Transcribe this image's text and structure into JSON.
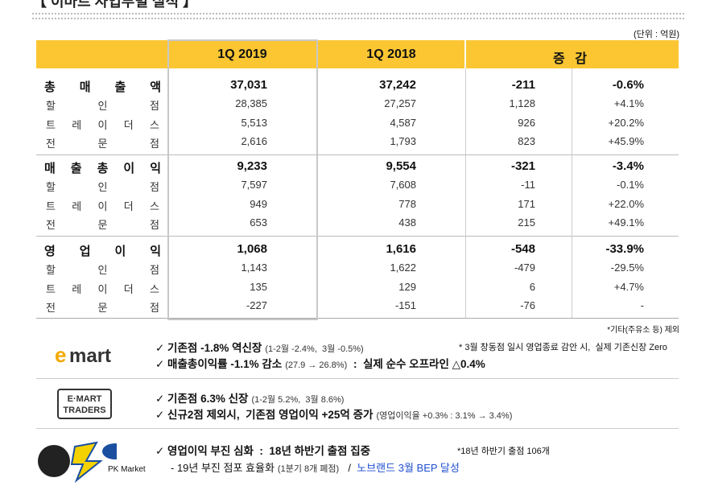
{
  "header": {
    "title": "【 이마트 사업부별 실적 】",
    "unit": "(단위 : 억원)"
  },
  "table": {
    "columns": [
      "1Q 2019",
      "1Q 2018",
      "증 감"
    ],
    "groups": [
      {
        "rows": [
          {
            "label": "총 매 출 액",
            "values": [
              "37,031",
              "37,242",
              "-211",
              "-0.6%"
            ]
          },
          {
            "label": "할 인 점",
            "values": [
              "28,385",
              "27,257",
              "1,128",
              "+4.1%"
            ]
          },
          {
            "label": "트 레 이 더 스",
            "values": [
              "5,513",
              "4,587",
              "926",
              "+20.2%"
            ]
          },
          {
            "label": "전 문 점",
            "values": [
              "2,616",
              "1,793",
              "823",
              "+45.9%"
            ]
          }
        ]
      },
      {
        "rows": [
          {
            "label": "매 출 총 이 익",
            "values": [
              "9,233",
              "9,554",
              "-321",
              "-3.4%"
            ]
          },
          {
            "label": "할 인 점",
            "values": [
              "7,597",
              "7,608",
              "-11",
              "-0.1%"
            ]
          },
          {
            "label": "트 레 이 더 스",
            "values": [
              "949",
              "778",
              "171",
              "+22.0%"
            ]
          },
          {
            "label": "전 문 점",
            "values": [
              "653",
              "438",
              "215",
              "+49.1%"
            ]
          }
        ]
      },
      {
        "rows": [
          {
            "label": "영 업 이 익",
            "values": [
              "1,068",
              "1,616",
              "-548",
              "-33.9%"
            ]
          },
          {
            "label": "할 인 점",
            "values": [
              "1,143",
              "1,622",
              "-479",
              "-29.5%"
            ]
          },
          {
            "label": "트 레 이 더 스",
            "values": [
              "135",
              "129",
              "6",
              "+4.7%"
            ]
          },
          {
            "label": "전 문 점",
            "values": [
              "-227",
              "-151",
              "-76",
              "-"
            ]
          }
        ]
      }
    ],
    "footnote": "*기타(주유소 등) 제외"
  },
  "sections": [
    {
      "logo": "emart",
      "lines": [
        [
          {
            "text": "✓ 기존점 -1.8% 역신장",
            "style": "bold"
          },
          {
            "text": "(1-2월 -2.4%,  3월 -0.5%)",
            "style": "small"
          }
        ],
        [
          {
            "text": "✓ 매출총이익률 -1.1% 감소",
            "style": "bold"
          },
          {
            "text": "(27.9 → 26.8%)",
            "style": "small"
          },
          {
            "text": " :  실제 순수 오프라인 △0.4%",
            "style": "bold"
          }
        ]
      ],
      "note": "* 3월 창동점 일시 영업종료 감안 시,  실제 기존신장 Zero"
    },
    {
      "logo": "E·MART TRADERS",
      "lines": [
        [
          {
            "text": "✓ 기존점 6.3% 신장",
            "style": "bold"
          },
          {
            "text": "(1-2월 5.2%,  3월 8.6%)",
            "style": "small"
          }
        ],
        [
          {
            "text": "✓ 신규2점 제외시,  기존점 영업이익 +25억 증가",
            "style": "bold"
          },
          {
            "text": "(영업이익율 +0.3% : 3.1% → 3.4%)",
            "style": "small"
          }
        ]
      ]
    },
    {
      "logo": "PK Market",
      "lines": [
        [
          {
            "text": "✓ 영업이익 부진 심화  :  18년 하반기 출점 집중",
            "style": "bold"
          }
        ],
        [
          {
            "text": "- 19년 부진 점포 효율화",
            "style": "plain"
          },
          {
            "text": "(1분기 8개 폐점)",
            "style": "small"
          },
          {
            "text": "  /  ",
            "style": "plain"
          },
          {
            "text": "노브랜드 3월 BEP 달성",
            "style": "blue"
          }
        ]
      ],
      "note": "*18년 하반기 출점 106개"
    }
  ]
}
